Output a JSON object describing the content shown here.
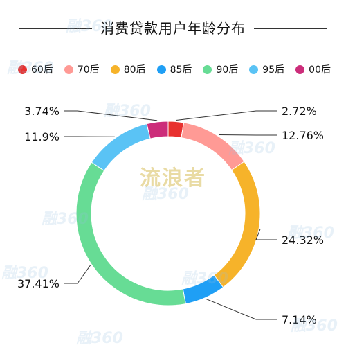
{
  "title": "消费贷款用户年龄分布",
  "watermark_center": "流浪者",
  "watermark_logo": "融360",
  "colors": {
    "60后": "#e8312f",
    "70后": "#ff9a95",
    "80后": "#f6b32a",
    "85后": "#1f9ff5",
    "90后": "#67dc95",
    "95后": "#5ac3f5",
    "00后": "#cc2d7a"
  },
  "chart_data": {
    "type": "pie",
    "donut": true,
    "title": "消费贷款用户年龄分布",
    "categories": [
      "60后",
      "70后",
      "80后",
      "85后",
      "90后",
      "95后",
      "00后"
    ],
    "values": [
      2.72,
      12.76,
      24.32,
      7.14,
      37.41,
      11.9,
      3.74
    ],
    "labels": [
      "2.72%",
      "12.76%",
      "24.32%",
      "7.14%",
      "37.41%",
      "11.9%",
      "3.74%"
    ],
    "legend_position": "top"
  }
}
